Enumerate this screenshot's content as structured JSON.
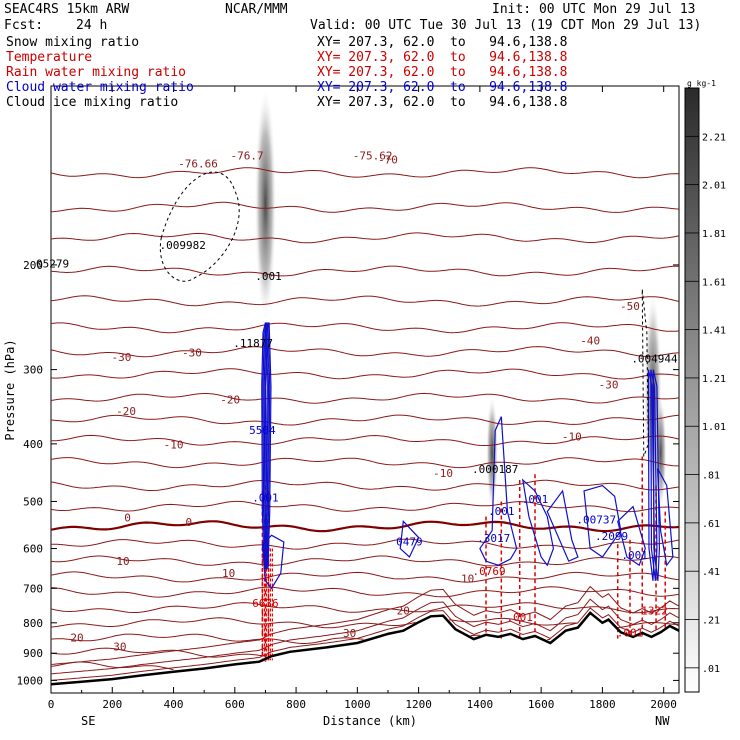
{
  "header": {
    "model": "SEAC4RS 15km ARW",
    "org": "NCAR/MMM",
    "init": "Init: 00 UTC Mon 29 Jul 13",
    "fcst_label": "Fcst:",
    "fcst_value": "24 h",
    "valid": "Valid: 00 UTC Tue 30 Jul 13 (19 CDT Mon 29 Jul 13)"
  },
  "fields": [
    {
      "name": "Snow mixing ratio",
      "xy": "XY= 207.3, 62.0  to   94.6,138.8",
      "color": "#000000"
    },
    {
      "name": "Temperature",
      "xy": "XY= 207.3, 62.0  to   94.6,138.8",
      "color": "#cc0000"
    },
    {
      "name": "Rain water mixing ratio",
      "xy": "XY= 207.3, 62.0  to   94.6,138.8",
      "color": "#cc0000"
    },
    {
      "name": "Cloud water mixing ratio",
      "xy": "XY= 207.3, 62.0  to   94.6,138.8",
      "color": "#0000cc"
    },
    {
      "name": "Cloud ice mixing ratio",
      "xy": "XY= 207.3, 62.0  to   94.6,138.8",
      "color": "#000000"
    }
  ],
  "chart_data": {
    "type": "cross-section",
    "xlabel": "Distance (km)",
    "ylabel": "Pressure (hPa)",
    "xlim": [
      0,
      2050
    ],
    "ylim": [
      1050,
      100
    ],
    "x_ticks": [
      0,
      200,
      400,
      600,
      800,
      1000,
      1200,
      1400,
      1600,
      1800,
      2000
    ],
    "y_ticks": [
      200,
      300,
      400,
      500,
      600,
      700,
      800,
      900,
      1000
    ],
    "y_scale": "log",
    "x_end_labels": {
      "left": "SE",
      "right": "NW"
    },
    "colorbar": {
      "unit": "g kg-1",
      "labels": [
        "2.21",
        "2.01",
        "1.81",
        "1.61",
        "1.41",
        "1.21",
        "1.01",
        ".81",
        ".61",
        ".41",
        ".21",
        ".01"
      ],
      "levels": [
        2.21,
        2.01,
        1.81,
        1.61,
        1.41,
        1.21,
        1.01,
        0.81,
        0.61,
        0.41,
        0.21,
        0.01
      ]
    },
    "temperature_labels": [
      {
        "x": 85,
        "p": 860,
        "text": "20"
      },
      {
        "x": 225,
        "p": 890,
        "text": "30"
      },
      {
        "x": 975,
        "p": 845,
        "text": "30"
      },
      {
        "x": 1150,
        "p": 775,
        "text": "20"
      },
      {
        "x": 1360,
        "p": 684,
        "text": "10"
      },
      {
        "x": 235,
        "p": 640,
        "text": "10"
      },
      {
        "x": 580,
        "p": 670,
        "text": "10"
      },
      {
        "x": 450,
        "p": 550,
        "text": "0"
      },
      {
        "x": 250,
        "p": 540,
        "text": "0"
      },
      {
        "x": 1280,
        "p": 455,
        "text": "-10"
      },
      {
        "x": 400,
        "p": 407,
        "text": "-10"
      },
      {
        "x": 1700,
        "p": 395,
        "text": "-10"
      },
      {
        "x": 245,
        "p": 358,
        "text": "-20"
      },
      {
        "x": 585,
        "p": 342,
        "text": "-20"
      },
      {
        "x": 1820,
        "p": 323,
        "text": "-30"
      },
      {
        "x": 230,
        "p": 290,
        "text": "-30"
      },
      {
        "x": 460,
        "p": 285,
        "text": "-30"
      },
      {
        "x": 1760,
        "p": 272,
        "text": "-40"
      },
      {
        "x": 1890,
        "p": 238,
        "text": "-50"
      },
      {
        "x": 1100,
        "p": 135,
        "text": "-70"
      },
      {
        "x": 480,
        "p": 137,
        "text": "-76.66"
      },
      {
        "x": 1050,
        "p": 133,
        "text": "-75.62"
      },
      {
        "x": 640,
        "p": 133,
        "text": "-76.7"
      }
    ],
    "point_labels": [
      {
        "x": 430,
        "p": 188,
        "text": ".009982",
        "color": "#000000"
      },
      {
        "x": 5,
        "p": 202,
        "text": "05279",
        "color": "#000000"
      },
      {
        "x": 710,
        "p": 212,
        "text": ".001",
        "color": "#000000"
      },
      {
        "x": 660,
        "p": 275,
        "text": ".11877",
        "color": "#000000"
      },
      {
        "x": 690,
        "p": 385,
        "text": "5504",
        "color": "#0000cc"
      },
      {
        "x": 1450,
        "p": 448,
        "text": ".000187",
        "color": "#000000"
      },
      {
        "x": 1970,
        "p": 292,
        "text": ".004944",
        "color": "#000000"
      },
      {
        "x": 700,
        "p": 500,
        "text": ".001",
        "color": "#0000cc"
      },
      {
        "x": 1470,
        "p": 527,
        "text": ".001",
        "color": "#0000cc"
      },
      {
        "x": 1580,
        "p": 503,
        "text": ".001",
        "color": "#0000cc"
      },
      {
        "x": 1170,
        "p": 593,
        "text": "0479",
        "color": "#0000cc"
      },
      {
        "x": 1445,
        "p": 585,
        "text": ".3017",
        "color": "#0000cc"
      },
      {
        "x": 1780,
        "p": 545,
        "text": ".00737",
        "color": "#0000cc"
      },
      {
        "x": 1830,
        "p": 580,
        "text": ".2099",
        "color": "#0000cc"
      },
      {
        "x": 1905,
        "p": 625,
        "text": ".001",
        "color": "#0000cc"
      },
      {
        "x": 1430,
        "p": 665,
        "text": ".0769",
        "color": "#cc0000"
      },
      {
        "x": 700,
        "p": 752,
        "text": "6636",
        "color": "#cc0000"
      },
      {
        "x": 1530,
        "p": 795,
        "text": ".001",
        "color": "#cc0000"
      },
      {
        "x": 1890,
        "p": 844,
        "text": ".001",
        "color": "#cc0000"
      },
      {
        "x": 1970,
        "p": 774,
        "text": "1322",
        "color": "#cc0000"
      }
    ],
    "terrain_profile": [
      [
        0,
        1015
      ],
      [
        100,
        1005
      ],
      [
        200,
        995
      ],
      [
        300,
        980
      ],
      [
        400,
        967
      ],
      [
        500,
        955
      ],
      [
        600,
        940
      ],
      [
        680,
        930
      ],
      [
        720,
        910
      ],
      [
        780,
        895
      ],
      [
        900,
        880
      ],
      [
        1000,
        865
      ],
      [
        1100,
        835
      ],
      [
        1150,
        825
      ],
      [
        1200,
        798
      ],
      [
        1240,
        780
      ],
      [
        1280,
        778
      ],
      [
        1320,
        820
      ],
      [
        1380,
        852
      ],
      [
        1420,
        838
      ],
      [
        1460,
        845
      ],
      [
        1500,
        835
      ],
      [
        1540,
        852
      ],
      [
        1580,
        842
      ],
      [
        1630,
        865
      ],
      [
        1680,
        825
      ],
      [
        1720,
        815
      ],
      [
        1760,
        770
      ],
      [
        1800,
        800
      ],
      [
        1820,
        790
      ],
      [
        1860,
        830
      ],
      [
        1900,
        845
      ],
      [
        1930,
        832
      ],
      [
        1960,
        845
      ],
      [
        1990,
        830
      ],
      [
        2020,
        810
      ],
      [
        2050,
        825
      ]
    ]
  }
}
